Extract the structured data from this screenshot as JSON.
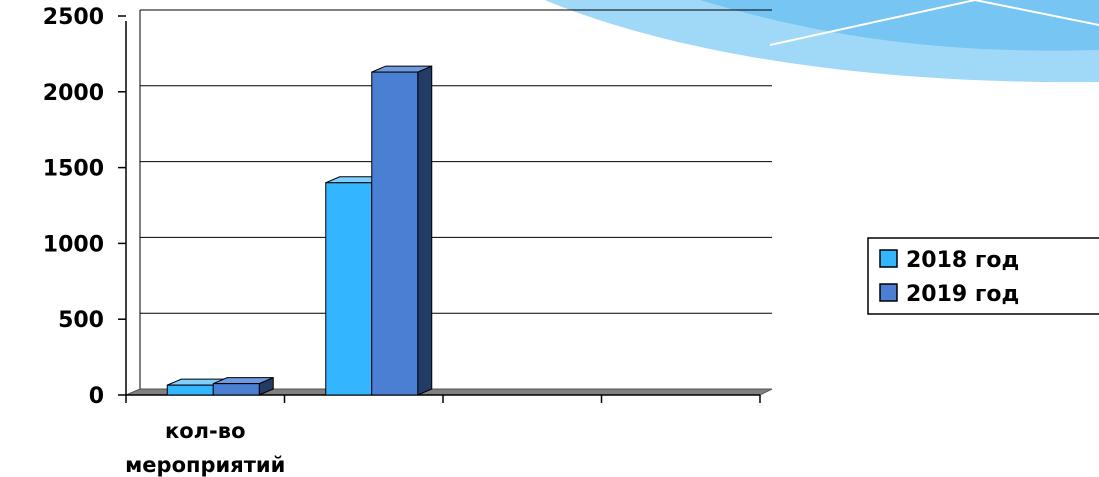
{
  "chart_data": {
    "type": "bar",
    "categories": [
      "кол-во мероприятий",
      "",
      "",
      ""
    ],
    "category_lines": [
      [
        "кол-во",
        "мероприятий"
      ],
      [],
      [],
      []
    ],
    "series": [
      {
        "name": "2018 год",
        "values": [
          65,
          1400,
          0,
          0
        ]
      },
      {
        "name": "2019 год",
        "values": [
          75,
          2130,
          0,
          0
        ]
      }
    ],
    "yticks": [
      "0",
      "500",
      "1000",
      "1500",
      "2000",
      "2500"
    ],
    "ylim": [
      0,
      2500
    ],
    "grid": true,
    "legend": "right",
    "title": "",
    "xlabel": "",
    "ylabel": ""
  },
  "colors": {
    "series_2018_front": "#33b5ff",
    "series_2018_top": "#7fd0ff",
    "series_2018_side": "#1f7fc0",
    "series_2019_front": "#4a7fd4",
    "series_2019_top": "#6f9ae0",
    "series_2019_side": "#233c66",
    "floor": "#808080",
    "grid": "#000000",
    "banner": "#8fd2f7"
  }
}
